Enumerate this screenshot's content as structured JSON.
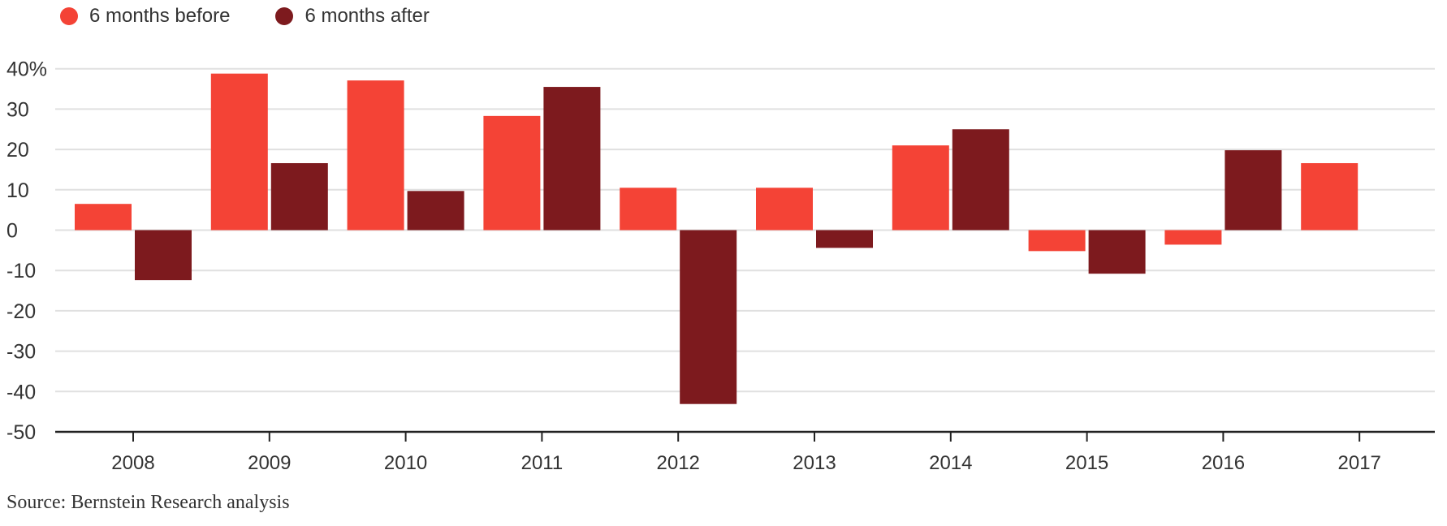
{
  "chart_data": {
    "type": "bar",
    "title": "",
    "xlabel": "",
    "ylabel": "",
    "categories": [
      "2008",
      "2009",
      "2010",
      "2011",
      "2012",
      "2013",
      "2014",
      "2015",
      "2016",
      "2017"
    ],
    "series": [
      {
        "name": "6 months before",
        "color": "#F44336",
        "values": [
          6.5,
          38.8,
          37.1,
          28.3,
          10.5,
          10.5,
          21.0,
          -5.2,
          -3.6,
          16.6
        ]
      },
      {
        "name": "6 months after",
        "color": "#7D1A1E",
        "values": [
          -12.4,
          16.6,
          9.7,
          35.5,
          -43.1,
          -4.4,
          25.0,
          -10.8,
          19.8,
          null
        ]
      }
    ],
    "ylim": [
      -50,
      40
    ],
    "yticks": [
      40,
      30,
      20,
      10,
      0,
      -10,
      -20,
      -30,
      -40,
      -50
    ],
    "ytick_labels": [
      "40%",
      "30",
      "20",
      "10",
      "0",
      "-10",
      "-20",
      "-30",
      "-40",
      "-50"
    ],
    "grid": true,
    "legend_position": "top-left"
  },
  "source": "Source: Bernstein Research analysis"
}
